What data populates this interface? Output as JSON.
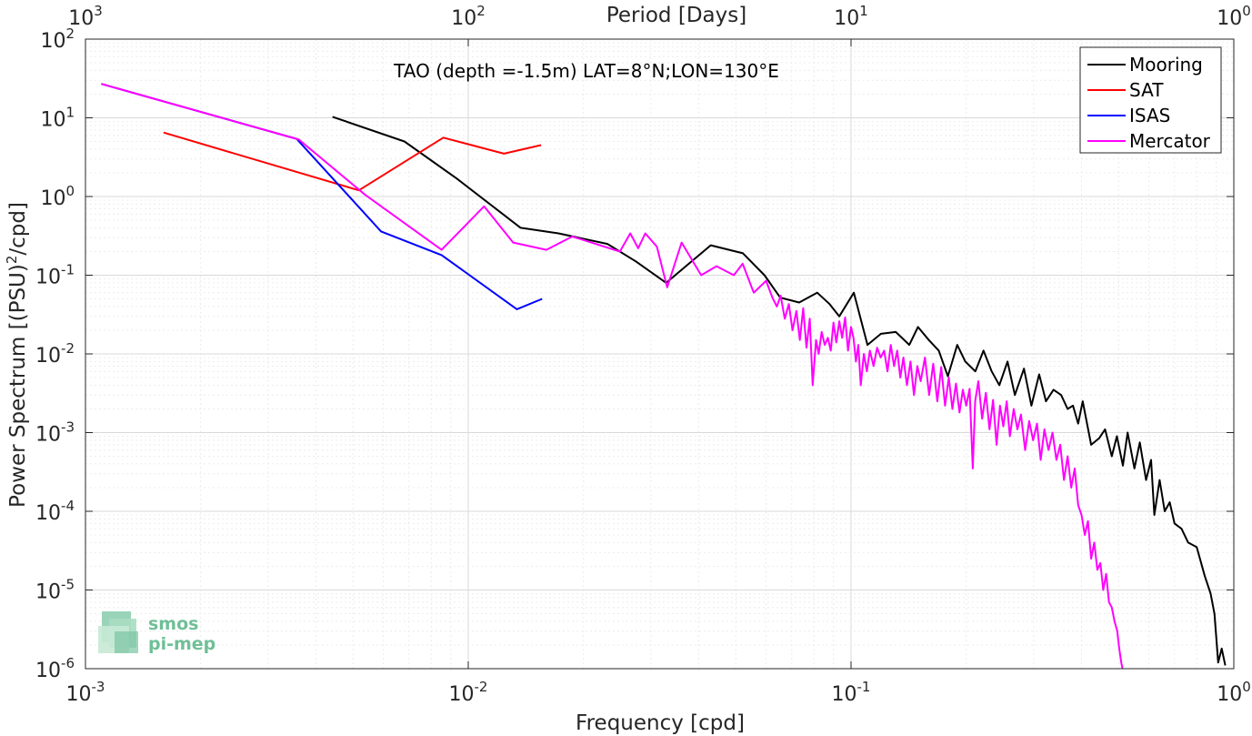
{
  "chart_data": {
    "type": "line",
    "title": "TAO (depth =-1.5m) LAT=8°N;LON=130°E",
    "xlabel": "Frequency [cpd]",
    "ylabel": "Power Spectrum [(PSU)²/cpd]",
    "top_xlabel": "Period [Days]",
    "xscale": "log",
    "yscale": "log",
    "xlim": [
      0.001,
      1
    ],
    "ylim": [
      1e-06,
      100
    ],
    "grid": true,
    "legend_position": "top-right",
    "x_ticks": [
      {
        "base": "10",
        "exp": "-3"
      },
      {
        "base": "10",
        "exp": "-2"
      },
      {
        "base": "10",
        "exp": "-1"
      },
      {
        "base": "10",
        "exp": "0"
      }
    ],
    "top_ticks": [
      {
        "base": "10",
        "exp": "3"
      },
      {
        "base": "10",
        "exp": "2"
      },
      {
        "base": "10",
        "exp": "1"
      },
      {
        "base": "10",
        "exp": "0"
      }
    ],
    "y_ticks": [
      {
        "base": "10",
        "exp": "2"
      },
      {
        "base": "10",
        "exp": "1"
      },
      {
        "base": "10",
        "exp": "0"
      },
      {
        "base": "10",
        "exp": "-1"
      },
      {
        "base": "10",
        "exp": "-2"
      },
      {
        "base": "10",
        "exp": "-3"
      },
      {
        "base": "10",
        "exp": "-4"
      },
      {
        "base": "10",
        "exp": "-5"
      },
      {
        "base": "10",
        "exp": "-6"
      }
    ],
    "series": [
      {
        "name": "Mooring",
        "color": "#000000",
        "points": [
          [
            0.00442,
            10.3
          ],
          [
            0.00681,
            5.0
          ],
          [
            0.00932,
            1.7
          ],
          [
            0.0137,
            0.4
          ],
          [
            0.0172,
            0.34
          ],
          [
            0.0231,
            0.25
          ],
          [
            0.0274,
            0.15
          ],
          [
            0.0329,
            0.08
          ],
          [
            0.043,
            0.24
          ],
          [
            0.0522,
            0.19
          ],
          [
            0.0594,
            0.1
          ],
          [
            0.0653,
            0.052
          ],
          [
            0.0732,
            0.045
          ],
          [
            0.0816,
            0.06
          ],
          [
            0.0879,
            0.043
          ],
          [
            0.0932,
            0.03
          ],
          [
            0.1017,
            0.06
          ],
          [
            0.1104,
            0.013
          ],
          [
            0.1197,
            0.018
          ],
          [
            0.1309,
            0.019
          ],
          [
            0.142,
            0.013
          ],
          [
            0.1496,
            0.022
          ],
          [
            0.1597,
            0.015
          ],
          [
            0.1695,
            0.011
          ],
          [
            0.179,
            0.0052
          ],
          [
            0.1894,
            0.013
          ],
          [
            0.1989,
            0.008
          ],
          [
            0.2112,
            0.006
          ],
          [
            0.2219,
            0.011
          ],
          [
            0.233,
            0.006
          ],
          [
            0.244,
            0.004
          ],
          [
            0.2563,
            0.008
          ],
          [
            0.268,
            0.003
          ],
          [
            0.283,
            0.0065
          ],
          [
            0.296,
            0.0022
          ],
          [
            0.31,
            0.0055
          ],
          [
            0.323,
            0.0025
          ],
          [
            0.338,
            0.0035
          ],
          [
            0.354,
            0.003
          ],
          [
            0.368,
            0.002
          ],
          [
            0.38,
            0.0022
          ],
          [
            0.392,
            0.0013
          ],
          [
            0.403,
            0.0025
          ],
          [
            0.424,
            0.0007
          ],
          [
            0.445,
            0.00085
          ],
          [
            0.461,
            0.0011
          ],
          [
            0.48,
            0.0005
          ],
          [
            0.495,
            0.0009
          ],
          [
            0.513,
            0.00038
          ],
          [
            0.528,
            0.001
          ],
          [
            0.55,
            0.00035
          ],
          [
            0.568,
            0.00075
          ],
          [
            0.59,
            0.00025
          ],
          [
            0.608,
            0.00045
          ],
          [
            0.62,
            9e-05
          ],
          [
            0.64,
            0.00025
          ],
          [
            0.66,
            0.0001
          ],
          [
            0.68,
            0.00013
          ],
          [
            0.7,
            7e-05
          ],
          [
            0.73,
            6e-05
          ],
          [
            0.76,
            4e-05
          ],
          [
            0.8,
            3.5e-05
          ],
          [
            0.84,
            1.5e-05
          ],
          [
            0.87,
            9e-06
          ],
          [
            0.89,
            5e-06
          ],
          [
            0.9,
            2.5e-06
          ],
          [
            0.91,
            1.2e-06
          ],
          [
            0.93,
            1.8e-06
          ],
          [
            0.95,
            1.1e-06
          ]
        ]
      },
      {
        "name": "SAT",
        "color": "#ff0000",
        "points": [
          [
            0.0016,
            6.5
          ],
          [
            0.00518,
            1.2
          ],
          [
            0.00861,
            5.6
          ],
          [
            0.0124,
            3.5
          ],
          [
            0.0155,
            4.5
          ]
        ]
      },
      {
        "name": "ISAS",
        "color": "#0000ff",
        "points": [
          [
            0.0011,
            27
          ],
          [
            0.00356,
            5.4
          ],
          [
            0.00592,
            0.36
          ],
          [
            0.00852,
            0.18
          ],
          [
            0.0134,
            0.037
          ],
          [
            0.0156,
            0.05
          ]
        ]
      },
      {
        "name": "Mercator",
        "color": "#ff00ff",
        "points": [
          [
            0.0011,
            27
          ],
          [
            0.00361,
            5.3
          ],
          [
            0.00538,
            1.05
          ],
          [
            0.00852,
            0.21
          ],
          [
            0.011,
            0.75
          ],
          [
            0.0131,
            0.26
          ],
          [
            0.016,
            0.21
          ],
          [
            0.0187,
            0.31
          ],
          [
            0.0249,
            0.2
          ],
          [
            0.0265,
            0.34
          ],
          [
            0.0278,
            0.22
          ],
          [
            0.029,
            0.34
          ],
          [
            0.0311,
            0.23
          ],
          [
            0.0331,
            0.07
          ],
          [
            0.0361,
            0.26
          ],
          [
            0.0406,
            0.1
          ],
          [
            0.0445,
            0.13
          ],
          [
            0.0494,
            0.1
          ],
          [
            0.0521,
            0.14
          ],
          [
            0.0557,
            0.06
          ],
          [
            0.06,
            0.085
          ],
          [
            0.0623,
            0.052
          ],
          [
            0.064,
            0.04
          ],
          [
            0.0655,
            0.055
          ],
          [
            0.0671,
            0.028
          ],
          [
            0.0688,
            0.043
          ],
          [
            0.0703,
            0.02
          ],
          [
            0.072,
            0.035
          ],
          [
            0.0735,
            0.015
          ],
          [
            0.075,
            0.038
          ],
          [
            0.0765,
            0.012
          ],
          [
            0.078,
            0.028
          ],
          [
            0.0794,
            0.004
          ],
          [
            0.081,
            0.015
          ],
          [
            0.0823,
            0.01
          ],
          [
            0.0838,
            0.019
          ],
          [
            0.0854,
            0.013
          ],
          [
            0.087,
            0.016
          ],
          [
            0.0885,
            0.011
          ],
          [
            0.09,
            0.025
          ],
          [
            0.0915,
            0.014
          ],
          [
            0.0932,
            0.026
          ],
          [
            0.0948,
            0.016
          ],
          [
            0.0965,
            0.029
          ],
          [
            0.0982,
            0.011
          ],
          [
            0.1,
            0.022
          ],
          [
            0.1015,
            0.016
          ],
          [
            0.103,
            0.008
          ],
          [
            0.1045,
            0.013
          ],
          [
            0.106,
            0.004
          ],
          [
            0.108,
            0.01
          ],
          [
            0.11,
            0.006
          ],
          [
            0.112,
            0.011
          ],
          [
            0.1145,
            0.007
          ],
          [
            0.117,
            0.012
          ],
          [
            0.1195,
            0.009
          ],
          [
            0.122,
            0.011
          ],
          [
            0.1245,
            0.006
          ],
          [
            0.127,
            0.013
          ],
          [
            0.1295,
            0.007
          ],
          [
            0.132,
            0.011
          ],
          [
            0.1345,
            0.005
          ],
          [
            0.137,
            0.009
          ],
          [
            0.14,
            0.004
          ],
          [
            0.143,
            0.008
          ],
          [
            0.146,
            0.003
          ],
          [
            0.149,
            0.007
          ],
          [
            0.152,
            0.0045
          ],
          [
            0.156,
            0.009
          ],
          [
            0.16,
            0.003
          ],
          [
            0.164,
            0.0075
          ],
          [
            0.168,
            0.0025
          ],
          [
            0.172,
            0.0068
          ],
          [
            0.176,
            0.0022
          ],
          [
            0.18,
            0.005
          ],
          [
            0.184,
            0.002
          ],
          [
            0.188,
            0.0042
          ],
          [
            0.192,
            0.0018
          ],
          [
            0.196,
            0.0035
          ],
          [
            0.2,
            0.0022
          ],
          [
            0.204,
            0.0036
          ],
          [
            0.208,
            0.00035
          ],
          [
            0.211,
            0.0025
          ],
          [
            0.215,
            0.0045
          ],
          [
            0.22,
            0.0015
          ],
          [
            0.225,
            0.0032
          ],
          [
            0.23,
            0.0011
          ],
          [
            0.235,
            0.0026
          ],
          [
            0.24,
            0.0007
          ],
          [
            0.245,
            0.0022
          ],
          [
            0.25,
            0.0012
          ],
          [
            0.255,
            0.0025
          ],
          [
            0.26,
            0.0009
          ],
          [
            0.266,
            0.002
          ],
          [
            0.272,
            0.0011
          ],
          [
            0.278,
            0.0017
          ],
          [
            0.285,
            0.0006
          ],
          [
            0.292,
            0.0014
          ],
          [
            0.299,
            0.0008
          ],
          [
            0.306,
            0.0013
          ],
          [
            0.313,
            0.00045
          ],
          [
            0.32,
            0.0011
          ],
          [
            0.328,
            0.0006
          ],
          [
            0.336,
            0.001
          ],
          [
            0.344,
            0.00045
          ],
          [
            0.352,
            0.0007
          ],
          [
            0.36,
            0.00025
          ],
          [
            0.368,
            0.0005
          ],
          [
            0.376,
            0.0002
          ],
          [
            0.384,
            0.00035
          ],
          [
            0.392,
            0.00012
          ],
          [
            0.4,
            9e-05
          ],
          [
            0.408,
            5e-05
          ],
          [
            0.416,
            7.5e-05
          ],
          [
            0.424,
            2.5e-05
          ],
          [
            0.432,
            4e-05
          ],
          [
            0.44,
            1.8e-05
          ],
          [
            0.448,
            2.2e-05
          ],
          [
            0.456,
            1e-05
          ],
          [
            0.464,
            1.6e-05
          ],
          [
            0.472,
            7e-06
          ],
          [
            0.48,
            6e-06
          ],
          [
            0.488,
            4e-06
          ],
          [
            0.496,
            3e-06
          ],
          [
            0.502,
            1.8e-06
          ],
          [
            0.508,
            1.2e-06
          ],
          [
            0.512,
            1e-06
          ]
        ]
      }
    ],
    "logo": {
      "line1": "smos",
      "line2": "pi-mep"
    }
  }
}
